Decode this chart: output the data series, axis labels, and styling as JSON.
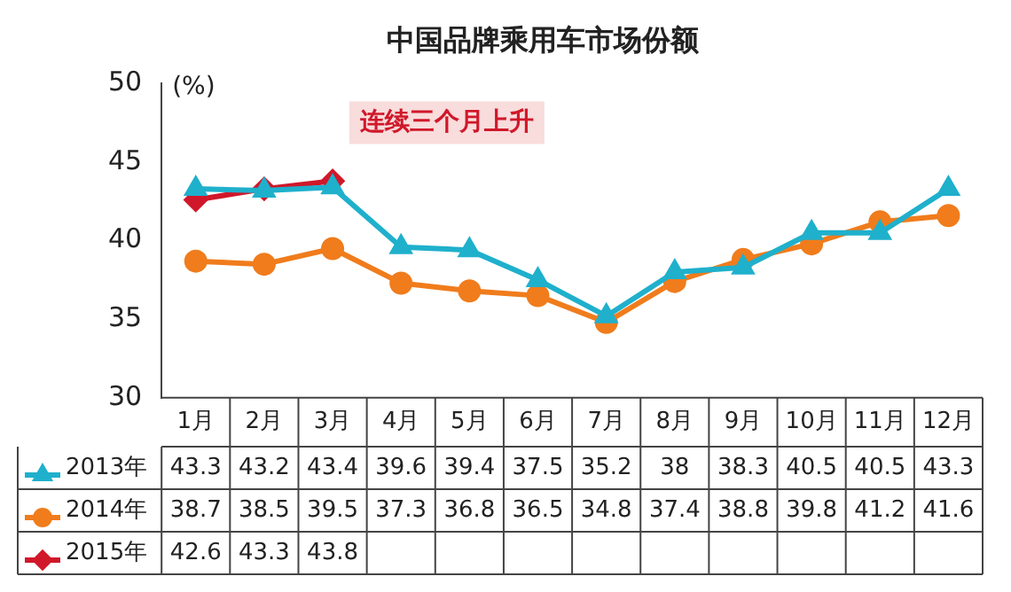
{
  "chart_data": {
    "type": "line",
    "title": "中国品牌乘用车市场份额",
    "ylabel": "(%)",
    "annotations": [
      "连续三个月上升"
    ],
    "categories": [
      "1月",
      "2月",
      "3月",
      "4月",
      "5月",
      "6月",
      "7月",
      "8月",
      "9月",
      "10月",
      "11月",
      "12月"
    ],
    "series": [
      {
        "name": "2013年",
        "color": "#1fb0cc",
        "marker": "triangle",
        "values": [
          43.3,
          43.2,
          43.4,
          39.6,
          39.4,
          37.5,
          35.2,
          38,
          38.3,
          40.5,
          40.5,
          43.3
        ]
      },
      {
        "name": "2014年",
        "color": "#f07c1c",
        "marker": "circle",
        "values": [
          38.7,
          38.5,
          39.5,
          37.3,
          36.8,
          36.5,
          34.8,
          37.4,
          38.8,
          39.8,
          41.2,
          41.6
        ]
      },
      {
        "name": "2015年",
        "color": "#d0182a",
        "marker": "diamond",
        "values": [
          42.6,
          43.3,
          43.8,
          null,
          null,
          null,
          null,
          null,
          null,
          null,
          null,
          null
        ]
      }
    ],
    "ylim": [
      30,
      50
    ],
    "yticks": [
      30,
      35,
      40,
      45,
      50
    ],
    "grid": false,
    "legend": "bottom left",
    "data_labels": true
  }
}
